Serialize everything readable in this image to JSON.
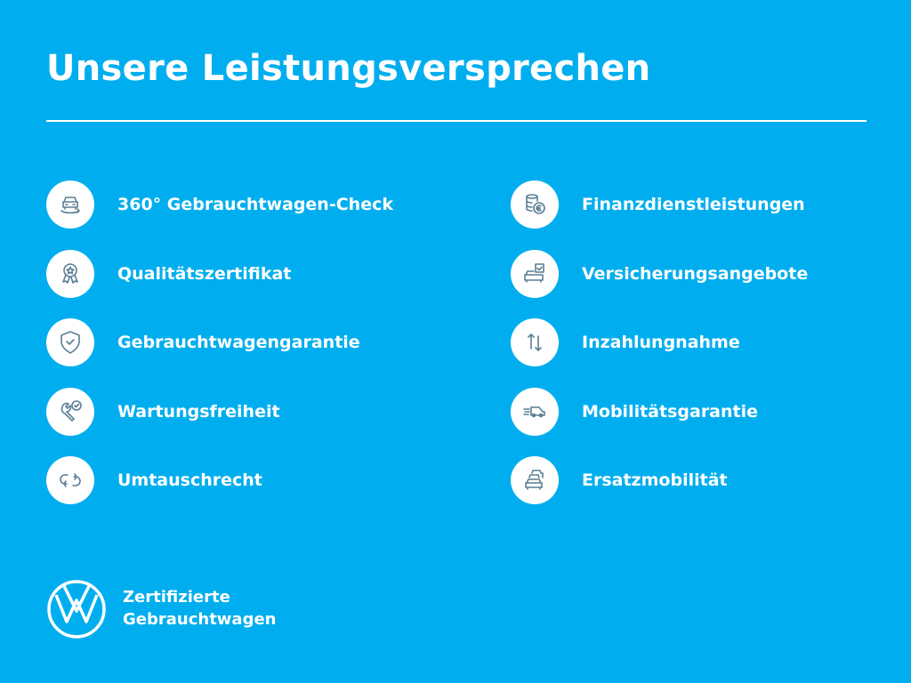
{
  "title": "Unsere Leistungsversprechen",
  "colors": {
    "background": "#00aeef",
    "text": "#ffffff",
    "icon_stroke": "#5a7f95"
  },
  "left_items": [
    {
      "label": "360° Gebrauchtwagen-Check",
      "icon": "car-360-icon"
    },
    {
      "label": "Qualitätszertifikat",
      "icon": "award-badge-icon"
    },
    {
      "label": "Gebrauchtwagengarantie",
      "icon": "shield-check-icon"
    },
    {
      "label": "Wartungsfreiheit",
      "icon": "wrench-check-icon"
    },
    {
      "label": "Umtauschrecht",
      "icon": "exchange-arrows-icon"
    }
  ],
  "right_items": [
    {
      "label": "Finanzdienstleistungen",
      "icon": "coins-euro-icon"
    },
    {
      "label": "Versicherungsangebote",
      "icon": "car-insurance-icon"
    },
    {
      "label": "Inzahlungnahme",
      "icon": "up-down-arrows-icon"
    },
    {
      "label": "Mobilitätsgarantie",
      "icon": "fast-van-icon"
    },
    {
      "label": "Ersatzmobilität",
      "icon": "stacked-cars-icon"
    }
  ],
  "brand": {
    "line1": "Zertifizierte",
    "line2": "Gebrauchtwagen",
    "logo": "vw-logo"
  }
}
